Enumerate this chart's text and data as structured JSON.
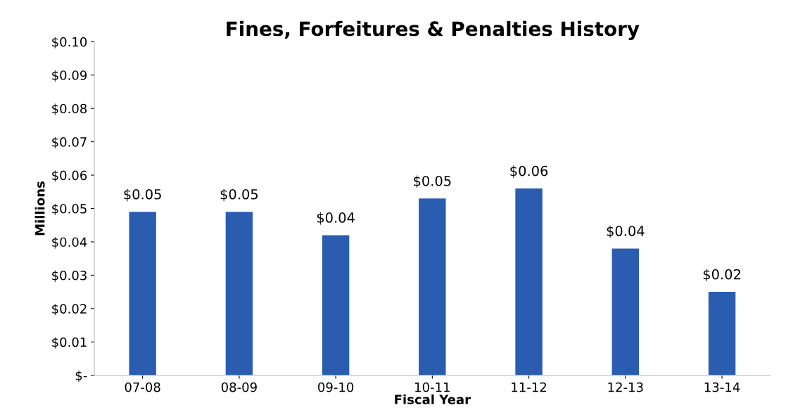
{
  "chart_data": {
    "type": "bar",
    "title": "Fines, Forfeitures & Penalties History",
    "xlabel": "Fiscal Year",
    "ylabel": "Millions",
    "categories": [
      "07-08",
      "08-09",
      "09-10",
      "10-11",
      "11-12",
      "12-13",
      "13-14"
    ],
    "series": [
      {
        "color": "#2a5db0",
        "values": [
          0.049,
          0.049,
          0.042,
          0.053,
          0.056,
          0.038,
          0.025
        ]
      }
    ],
    "value_labels": [
      "$0.05",
      "$0.05",
      "$0.04",
      "$0.05",
      "$0.06",
      "$0.04",
      "$0.02"
    ],
    "ylim": [
      0,
      0.1
    ],
    "yticks": [
      {
        "value": 0,
        "label": "$-"
      },
      {
        "value": 0.01,
        "label": "$0.01"
      },
      {
        "value": 0.02,
        "label": "$0.02"
      },
      {
        "value": 0.03,
        "label": "$0.03"
      },
      {
        "value": 0.04,
        "label": "$0.04"
      },
      {
        "value": 0.05,
        "label": "$0.05"
      },
      {
        "value": 0.06,
        "label": "$0.06"
      },
      {
        "value": 0.07,
        "label": "$0.07"
      },
      {
        "value": 0.08,
        "label": "$0.08"
      },
      {
        "value": 0.09,
        "label": "$0.09"
      },
      {
        "value": 0.1,
        "label": "$0.10"
      }
    ],
    "grid": false,
    "legend": false
  }
}
